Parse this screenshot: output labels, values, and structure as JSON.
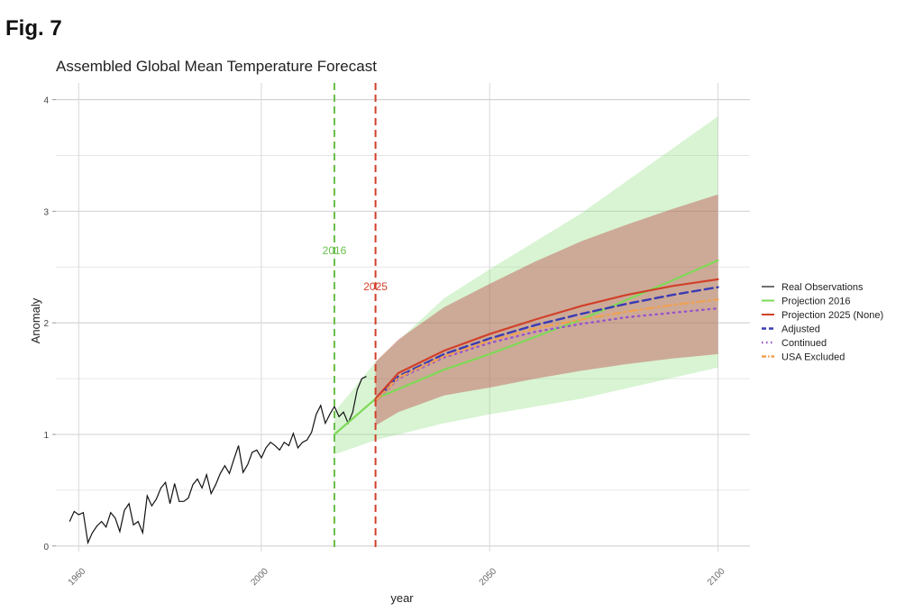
{
  "figure_label": "Fig. 7",
  "chart_data": {
    "type": "line",
    "title": "Assembled Global Mean Temperature Forecast",
    "xlabel": "year",
    "ylabel": "Anomaly",
    "xlim": [
      1955,
      2107
    ],
    "ylim": [
      -0.05,
      4.15
    ],
    "x_ticks": [
      1960,
      2000,
      2050,
      2100
    ],
    "y_ticks": [
      0,
      1,
      2,
      3,
      4
    ],
    "grid": true,
    "legend_position": "right",
    "vertical_markers": [
      {
        "label": "2016",
        "x": 2016,
        "color": "#6abf4b"
      },
      {
        "label": "2025",
        "x": 2025,
        "color": "#d1402a"
      }
    ],
    "observations": {
      "name": "Real Observations",
      "color": "#111111",
      "x": [
        1958,
        1959,
        1960,
        1961,
        1962,
        1963,
        1964,
        1965,
        1966,
        1967,
        1968,
        1969,
        1970,
        1971,
        1972,
        1973,
        1974,
        1975,
        1976,
        1977,
        1978,
        1979,
        1980,
        1981,
        1982,
        1983,
        1984,
        1985,
        1986,
        1987,
        1988,
        1989,
        1990,
        1991,
        1992,
        1993,
        1994,
        1995,
        1996,
        1997,
        1998,
        1999,
        2000,
        2001,
        2002,
        2003,
        2004,
        2005,
        2006,
        2007,
        2008,
        2009,
        2010,
        2011,
        2012,
        2013,
        2014,
        2015,
        2016,
        2017,
        2018,
        2019,
        2020,
        2021,
        2022,
        2023
      ],
      "y": [
        0.22,
        0.31,
        0.28,
        0.3,
        0.03,
        0.12,
        0.18,
        0.22,
        0.17,
        0.3,
        0.25,
        0.13,
        0.32,
        0.38,
        0.19,
        0.22,
        0.12,
        0.45,
        0.36,
        0.42,
        0.52,
        0.57,
        0.38,
        0.56,
        0.4,
        0.4,
        0.43,
        0.55,
        0.6,
        0.52,
        0.64,
        0.47,
        0.55,
        0.65,
        0.72,
        0.65,
        0.78,
        0.9,
        0.66,
        0.73,
        0.84,
        0.86,
        0.79,
        0.88,
        0.93,
        0.9,
        0.86,
        0.93,
        0.9,
        1.01,
        0.88,
        0.93,
        0.95,
        1.02,
        1.18,
        1.26,
        1.1,
        1.18,
        1.25,
        1.16,
        1.2,
        1.1,
        1.2,
        1.4,
        1.5,
        1.52
      ]
    },
    "bands": [
      {
        "name": "Projection 2016 interval",
        "color": "#90e080",
        "opacity": 0.35,
        "x": [
          2016,
          2025,
          2040,
          2050,
          2070,
          2100
        ],
        "lower": [
          0.82,
          0.95,
          1.1,
          1.18,
          1.32,
          1.6
        ],
        "upper": [
          1.2,
          1.65,
          2.22,
          2.48,
          2.98,
          3.85
        ]
      },
      {
        "name": "Projection 2025 interval",
        "color": "#c0504d",
        "opacity": 0.45,
        "x": [
          2025,
          2030,
          2040,
          2050,
          2060,
          2070,
          2080,
          2090,
          2100
        ],
        "lower": [
          1.08,
          1.2,
          1.35,
          1.42,
          1.5,
          1.57,
          1.63,
          1.68,
          1.72
        ],
        "upper": [
          1.65,
          1.85,
          2.14,
          2.35,
          2.55,
          2.73,
          2.88,
          3.02,
          3.15
        ]
      }
    ],
    "series": [
      {
        "name": "Real Observations",
        "color": "#111111",
        "dash": "solid"
      },
      {
        "name": "Projection 2016",
        "color": "#7ed957",
        "dash": "solid",
        "x": [
          2016,
          2025,
          2040,
          2050,
          2070,
          2090,
          2100
        ],
        "values": [
          1.0,
          1.32,
          1.58,
          1.72,
          2.03,
          2.38,
          2.56
        ]
      },
      {
        "name": "Projection 2025 (None)",
        "color": "#d1402a",
        "dash": "solid",
        "x": [
          2025,
          2030,
          2040,
          2050,
          2060,
          2070,
          2080,
          2090,
          2100
        ],
        "values": [
          1.32,
          1.55,
          1.75,
          1.9,
          2.03,
          2.15,
          2.25,
          2.33,
          2.39
        ]
      },
      {
        "name": "Adjusted",
        "color": "#3b3bb3",
        "dash": "dashed",
        "x": [
          2025,
          2030,
          2040,
          2050,
          2060,
          2070,
          2080,
          2090,
          2100
        ],
        "values": [
          1.3,
          1.52,
          1.72,
          1.86,
          1.98,
          2.08,
          2.17,
          2.25,
          2.32
        ]
      },
      {
        "name": "Continued",
        "color": "#9955cc",
        "dash": "dotted",
        "x": [
          2025,
          2030,
          2040,
          2050,
          2060,
          2070,
          2080,
          2090,
          2100
        ],
        "values": [
          1.3,
          1.5,
          1.69,
          1.82,
          1.92,
          1.99,
          2.05,
          2.09,
          2.13
        ]
      },
      {
        "name": "USA Excluded",
        "color": "#f0a050",
        "dash": "dotdash",
        "x": [
          2025,
          2030,
          2040,
          2050,
          2060,
          2070,
          2080,
          2090,
          2100
        ],
        "values": [
          1.3,
          1.51,
          1.7,
          1.84,
          1.95,
          2.03,
          2.1,
          2.16,
          2.21
        ]
      }
    ]
  }
}
